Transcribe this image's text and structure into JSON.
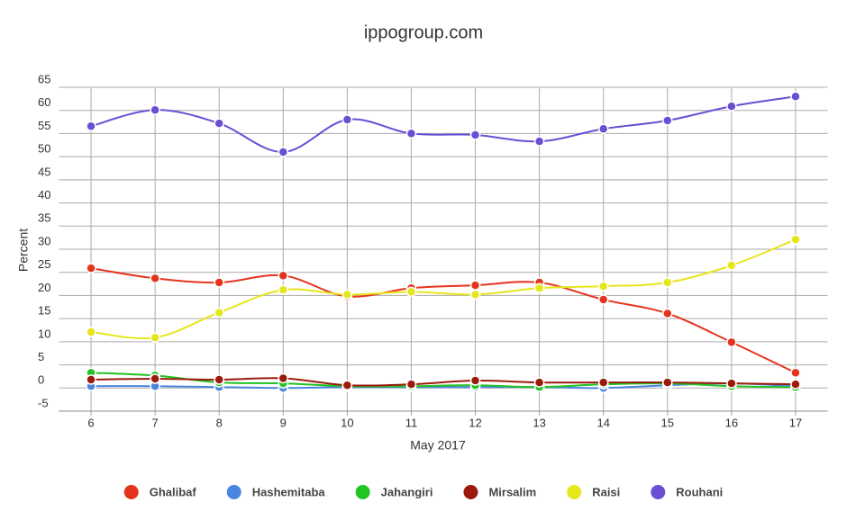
{
  "chart_data": {
    "type": "line",
    "title": "ippogroup.com",
    "x_label": "May 2017",
    "y_label": "Percent",
    "x": [
      6,
      7,
      8,
      9,
      10,
      11,
      12,
      13,
      14,
      15,
      16,
      17
    ],
    "xlim": [
      5.5,
      17.5
    ],
    "xticks": [
      6,
      7,
      8,
      9,
      10,
      11,
      12,
      13,
      14,
      15,
      16,
      17
    ],
    "ylim": [
      -5,
      65
    ],
    "yticks": [
      -5,
      0,
      5,
      10,
      15,
      20,
      25,
      30,
      35,
      40,
      45,
      50,
      55,
      60,
      65
    ],
    "grid": true,
    "smooth": true,
    "legend": "bottom",
    "series": [
      {
        "name": "Ghalibaf",
        "color": "#e5341d",
        "values": [
          25.9,
          23.7,
          22.8,
          24.3,
          19.8,
          21.6,
          22.2,
          22.8,
          19.1,
          16.1,
          9.9,
          3.3
        ]
      },
      {
        "name": "Hashemitaba",
        "color": "#4a86e0",
        "values": [
          0.4,
          0.4,
          0.2,
          0,
          0.2,
          0.2,
          0.2,
          0.2,
          0,
          0.6,
          1,
          0.4
        ]
      },
      {
        "name": "Jahangiri",
        "color": "#22c322",
        "values": [
          3.3,
          2.7,
          1.2,
          1,
          0.4,
          0.4,
          0.6,
          0.2,
          0.8,
          1,
          0.4,
          0.2
        ]
      },
      {
        "name": "Mirsalim",
        "color": "#9b1a0c",
        "values": [
          1.8,
          2,
          1.8,
          2.1,
          0.6,
          0.8,
          1.6,
          1.2,
          1.2,
          1.2,
          1,
          0.8
        ]
      },
      {
        "name": "Raisi",
        "color": "#e6e61c",
        "values": [
          12.1,
          10.9,
          16.3,
          21.2,
          20.2,
          20.8,
          20.2,
          21.6,
          22,
          22.8,
          26.5,
          32.1
        ]
      },
      {
        "name": "Rouhani",
        "color": "#6a4fd4",
        "values": [
          56.6,
          60.1,
          57.2,
          51,
          58,
          55,
          54.7,
          53.3,
          56,
          57.8,
          60.9,
          63
        ]
      }
    ]
  }
}
